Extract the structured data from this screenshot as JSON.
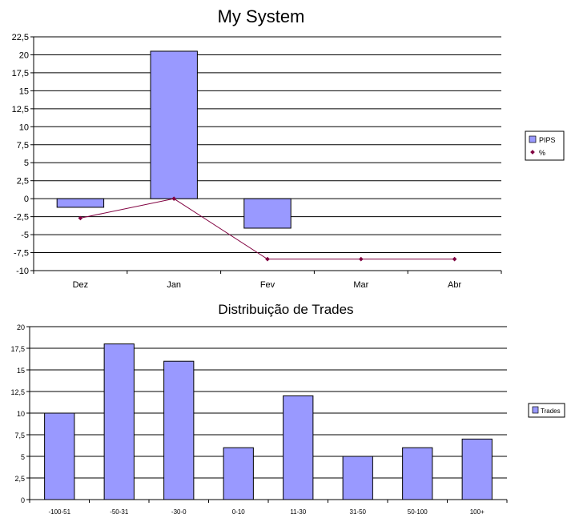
{
  "chart_data": [
    {
      "type": "bar",
      "title": "My System",
      "categories": [
        "Dez",
        "Jan",
        "Fev",
        "Mar",
        "Abr"
      ],
      "ylim": [
        -10,
        22.5
      ],
      "yticks": [
        "22,5",
        "20",
        "17,5",
        "15",
        "12,5",
        "10",
        "7,5",
        "5",
        "2,5",
        "0",
        "-2,5",
        "-5",
        "-7,5",
        "-10"
      ],
      "grid": true,
      "legend_position": "right",
      "series": [
        {
          "name": "PIPS",
          "kind": "bar",
          "color": "#9999ff",
          "values": [
            -1.2,
            20.5,
            -4.1,
            null,
            null
          ]
        },
        {
          "name": "%",
          "kind": "line",
          "color": "#800040",
          "values": [
            -2.7,
            0,
            -8.4,
            -8.4,
            -8.4
          ]
        }
      ]
    },
    {
      "type": "bar",
      "title": "Distribuição de Trades",
      "categories": [
        "-100-51",
        "-50-31",
        "-30-0",
        "0-10",
        "11-30",
        "31-50",
        "50-100",
        "100+"
      ],
      "ylim": [
        0,
        20
      ],
      "yticks": [
        "20",
        "17,5",
        "15",
        "12,5",
        "10",
        "7,5",
        "5",
        "2,5",
        "0"
      ],
      "grid": true,
      "legend_position": "right",
      "series": [
        {
          "name": "Trades",
          "kind": "bar",
          "color": "#9999ff",
          "values": [
            10,
            18,
            16,
            6,
            12,
            5,
            6,
            7
          ]
        }
      ]
    }
  ]
}
